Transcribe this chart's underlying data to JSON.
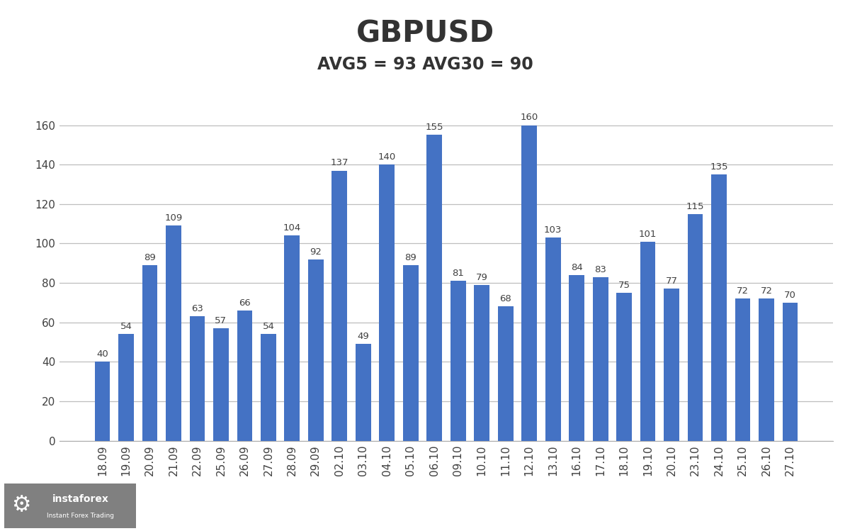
{
  "title": "GBPUSD",
  "subtitle": "AVG5 = 93 AVG30 = 90",
  "categories": [
    "18.09",
    "19.09",
    "20.09",
    "21.09",
    "22.09",
    "25.09",
    "26.09",
    "27.09",
    "28.09",
    "29.09",
    "02.10",
    "03.10",
    "04.10",
    "05.10",
    "06.10",
    "09.10",
    "10.10",
    "11.10",
    "12.10",
    "13.10",
    "16.10",
    "17.10",
    "18.10",
    "19.10",
    "20.10",
    "23.10",
    "24.10",
    "25.10",
    "26.10",
    "27.10"
  ],
  "values": [
    40,
    54,
    89,
    109,
    63,
    57,
    66,
    54,
    104,
    92,
    137,
    49,
    140,
    89,
    155,
    81,
    79,
    68,
    160,
    103,
    84,
    83,
    75,
    101,
    77,
    115,
    135,
    72,
    72,
    70
  ],
  "bar_color": "#4472C4",
  "ylim": [
    0,
    175
  ],
  "yticks": [
    0,
    20,
    40,
    60,
    80,
    100,
    120,
    140,
    160
  ],
  "title_fontsize": 30,
  "subtitle_fontsize": 17,
  "label_fontsize": 9.5,
  "tick_fontsize": 11,
  "background_color": "#FFFFFF",
  "grid_color": "#BEBEBE",
  "logo_bg": "#808080",
  "text_color": "#404040"
}
